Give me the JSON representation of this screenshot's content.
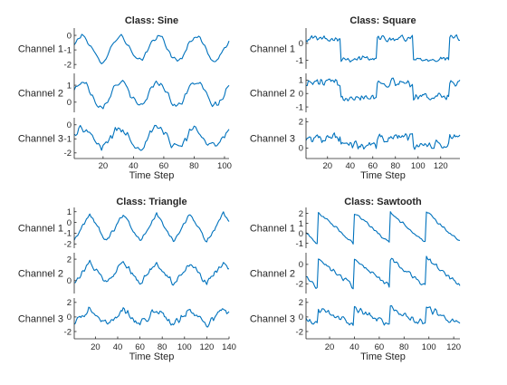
{
  "chart_data": [
    {
      "type": "line",
      "title": "Class: Sine",
      "xlabel": "Time Step",
      "xlim": [
        1,
        103
      ],
      "xticks": [
        20,
        40,
        60,
        80,
        100
      ],
      "channels": [
        {
          "name": "Channel 1",
          "yticks": [
            0,
            -1,
            -2
          ],
          "ylim": [
            -2.3,
            0.5
          ],
          "wave": "sine",
          "period": 25,
          "amp": 0.85,
          "offset": -0.9,
          "noise": 0.22
        },
        {
          "name": "Channel 2",
          "yticks": [
            1,
            0
          ],
          "ylim": [
            -0.6,
            1.7
          ],
          "wave": "sine",
          "period": 25,
          "amp": 0.7,
          "offset": 0.5,
          "noise": 0.25
        },
        {
          "name": "Channel 3",
          "yticks": [
            0,
            -1,
            -2
          ],
          "ylim": [
            -2.4,
            0.5
          ],
          "wave": "sine",
          "period": 25,
          "amp": 0.6,
          "offset": -0.9,
          "noise": 0.45
        }
      ]
    },
    {
      "type": "line",
      "title": "Class: Square",
      "xlabel": "Time Step",
      "xlim": [
        1,
        137
      ],
      "xticks": [
        20,
        40,
        60,
        80,
        100,
        120
      ],
      "channels": [
        {
          "name": "Channel 1",
          "yticks": [
            0,
            -1
          ],
          "ylim": [
            -1.5,
            0.9
          ],
          "wave": "square",
          "period": 64,
          "amp": 0.6,
          "offset": -0.3,
          "noise": 0.22
        },
        {
          "name": "Channel 2",
          "yticks": [
            1,
            0,
            -1
          ],
          "ylim": [
            -1.4,
            1.5
          ],
          "wave": "square",
          "period": 64,
          "amp": 0.5,
          "offset": 0.3,
          "noise": 0.4
        },
        {
          "name": "Channel 3",
          "yticks": [
            2,
            0
          ],
          "ylim": [
            -0.8,
            2.3
          ],
          "wave": "square",
          "period": 64,
          "amp": 0.3,
          "offset": 0.5,
          "noise": 0.45
        }
      ]
    },
    {
      "type": "line",
      "title": "Class: Triangle",
      "xlabel": "Time Step",
      "xlim": [
        1,
        140
      ],
      "xticks": [
        20,
        40,
        60,
        80,
        100,
        120,
        140
      ],
      "channels": [
        {
          "name": "Channel 1",
          "yticks": [
            1,
            0,
            -1,
            -2
          ],
          "ylim": [
            -2.4,
            1.4
          ],
          "wave": "triangle",
          "period": 30,
          "amp": 1.3,
          "offset": -0.5,
          "noise": 0.2
        },
        {
          "name": "Channel 2",
          "yticks": [
            2,
            0
          ],
          "ylim": [
            -1.2,
            2.6
          ],
          "wave": "triangle",
          "period": 30,
          "amp": 1.0,
          "offset": 0.7,
          "noise": 0.3
        },
        {
          "name": "Channel 3",
          "yticks": [
            2,
            0,
            -2
          ],
          "ylim": [
            -3.0,
            2.6
          ],
          "wave": "triangle",
          "period": 30,
          "amp": 1.1,
          "offset": 0.0,
          "noise": 0.6
        }
      ]
    },
    {
      "type": "line",
      "title": "Class: Sawtooth",
      "xlabel": "Time Step",
      "xlim": [
        1,
        125
      ],
      "xticks": [
        20,
        40,
        60,
        80,
        100,
        120
      ],
      "channels": [
        {
          "name": "Channel 1",
          "yticks": [
            2,
            1,
            0,
            -1
          ],
          "ylim": [
            -1.5,
            2.6
          ],
          "wave": "saw",
          "period": 29,
          "phase": 18,
          "amp": 1.6,
          "offset": 0.5,
          "noise": 0.2
        },
        {
          "name": "Channel 2",
          "yticks": [
            0,
            -2
          ],
          "ylim": [
            -3.0,
            1.2
          ],
          "wave": "saw",
          "period": 29,
          "phase": 18,
          "amp": 1.5,
          "offset": -0.9,
          "noise": 0.3
        },
        {
          "name": "Channel 3",
          "yticks": [
            2,
            0,
            -2
          ],
          "ylim": [
            -3.0,
            2.6
          ],
          "wave": "saw",
          "period": 29,
          "phase": 18,
          "amp": 1.2,
          "offset": 0.0,
          "noise": 0.55
        }
      ]
    }
  ],
  "colors": {
    "line": "#0072bd",
    "axis": "#262626"
  }
}
